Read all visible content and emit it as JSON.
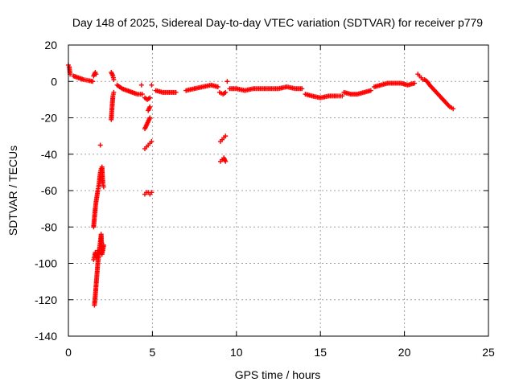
{
  "chart_data": {
    "type": "scatter",
    "title": "Day 148 of 2025, Sidereal Day-to-day VTEC variation (SDTVAR) for receiver p779",
    "xlabel": "GPS time / hours",
    "ylabel": "SDTVAR / TECUs",
    "xlim": [
      0,
      25
    ],
    "ylim": [
      -140,
      20
    ],
    "xticks": [
      0,
      5,
      10,
      15,
      20,
      25
    ],
    "yticks": [
      -140,
      -120,
      -100,
      -80,
      -60,
      -40,
      -20,
      0,
      20
    ],
    "grid": true,
    "marker": "+",
    "color": "#ff0000",
    "segments": [
      {
        "x": [
          0.0,
          0.05,
          0.1
        ],
        "y": [
          9,
          8,
          4
        ]
      },
      {
        "x": [
          0.3,
          0.6,
          0.9,
          1.2,
          1.45
        ],
        "y": [
          3,
          2,
          1,
          0.5,
          0
        ]
      },
      {
        "x": [
          1.5,
          1.6,
          1.65
        ],
        "y": [
          3,
          5,
          4
        ]
      },
      {
        "x": [
          1.5,
          1.55,
          1.6,
          1.65,
          1.7,
          1.75,
          1.8,
          1.85,
          1.9,
          1.95,
          2.0,
          2.05,
          2.1
        ],
        "y": [
          -80,
          -75,
          -70,
          -66,
          -63,
          -60,
          -58,
          -54,
          -50,
          -48,
          -47,
          -56,
          -58
        ]
      },
      {
        "x": [
          1.55,
          1.6,
          1.65,
          1.7,
          1.75,
          1.8,
          1.85,
          1.9,
          1.95,
          2.0,
          2.05,
          2.1
        ],
        "y": [
          -123,
          -118,
          -112,
          -106,
          -100,
          -96,
          -92,
          -88,
          -84,
          -95,
          -93,
          -90
        ]
      },
      {
        "x": [
          1.5,
          1.55,
          1.6,
          1.65,
          1.7,
          1.75
        ],
        "y": [
          -98,
          -96,
          -94,
          -97,
          -95,
          -93
        ]
      },
      {
        "x": [
          1.9
        ],
        "y": [
          -35
        ]
      },
      {
        "x": [
          2.55,
          2.6,
          2.65,
          2.7
        ],
        "y": [
          -21,
          -14,
          -8,
          -6
        ]
      },
      {
        "x": [
          2.55,
          2.65,
          2.7
        ],
        "y": [
          5,
          3,
          1
        ]
      },
      {
        "x": [
          2.9,
          3.2,
          3.5,
          3.8,
          4.1,
          4.4
        ],
        "y": [
          -2,
          -4,
          -5,
          -6,
          -7,
          -7
        ]
      },
      {
        "x": [
          4.35
        ],
        "y": [
          -2
        ]
      },
      {
        "x": [
          4.55,
          4.7,
          4.85
        ],
        "y": [
          -9,
          -10,
          -9
        ]
      },
      {
        "x": [
          4.55,
          4.65,
          4.75,
          4.85
        ],
        "y": [
          -26,
          -24,
          -22,
          -20
        ]
      },
      {
        "x": [
          4.75,
          4.85
        ],
        "y": [
          -16,
          -14
        ]
      },
      {
        "x": [
          4.55,
          4.65,
          4.75,
          4.85,
          4.95
        ],
        "y": [
          -37,
          -36,
          -35,
          -34,
          -33
        ]
      },
      {
        "x": [
          4.55,
          4.65,
          4.75,
          4.85,
          4.95
        ],
        "y": [
          -62,
          -61,
          -61,
          -62,
          -61
        ]
      },
      {
        "x": [
          4.95
        ],
        "y": [
          -2
        ]
      },
      {
        "x": [
          5.2,
          5.6,
          6.0,
          6.4
        ],
        "y": [
          -5,
          -6,
          -6,
          -6
        ]
      },
      {
        "x": [
          7.0,
          7.5,
          8.0,
          8.5,
          8.9
        ],
        "y": [
          -5,
          -4,
          -3,
          -2,
          -3
        ]
      },
      {
        "x": [
          9.0,
          9.2,
          9.35
        ],
        "y": [
          -6,
          -7,
          -6
        ]
      },
      {
        "x": [
          9.45
        ],
        "y": [
          0
        ]
      },
      {
        "x": [
          9.05,
          9.15,
          9.25,
          9.35
        ],
        "y": [
          -33,
          -32,
          -31,
          -30
        ]
      },
      {
        "x": [
          9.05,
          9.15,
          9.25,
          9.35
        ],
        "y": [
          -44,
          -43,
          -42,
          -44
        ]
      },
      {
        "x": [
          9.6,
          10.0,
          10.5,
          11.0,
          11.5,
          12.0,
          12.5,
          13.0,
          13.5,
          13.9
        ],
        "y": [
          -4,
          -4,
          -5,
          -4,
          -4,
          -4,
          -4,
          -3,
          -4,
          -4
        ]
      },
      {
        "x": [
          14.1,
          14.5,
          15.0,
          15.5,
          16.0,
          16.3
        ],
        "y": [
          -7,
          -8,
          -9,
          -8,
          -8,
          -8
        ]
      },
      {
        "x": [
          16.4,
          16.8,
          17.2,
          17.6,
          18.0
        ],
        "y": [
          -6,
          -7,
          -7,
          -6,
          -5
        ]
      },
      {
        "x": [
          18.2,
          18.6,
          19.0,
          19.4,
          19.8,
          20.2,
          20.6
        ],
        "y": [
          -3,
          -2,
          -1,
          -1,
          -1,
          -2,
          -1
        ]
      },
      {
        "x": [
          20.8,
          20.9,
          21.0,
          21.1,
          21.2,
          21.35,
          21.5,
          21.7,
          21.9,
          22.1,
          22.3,
          22.5,
          22.7,
          22.9
        ],
        "y": [
          4,
          3,
          2,
          1,
          1,
          0,
          -2,
          -4,
          -6,
          -8,
          -10,
          -12,
          -14,
          -15
        ]
      }
    ]
  }
}
